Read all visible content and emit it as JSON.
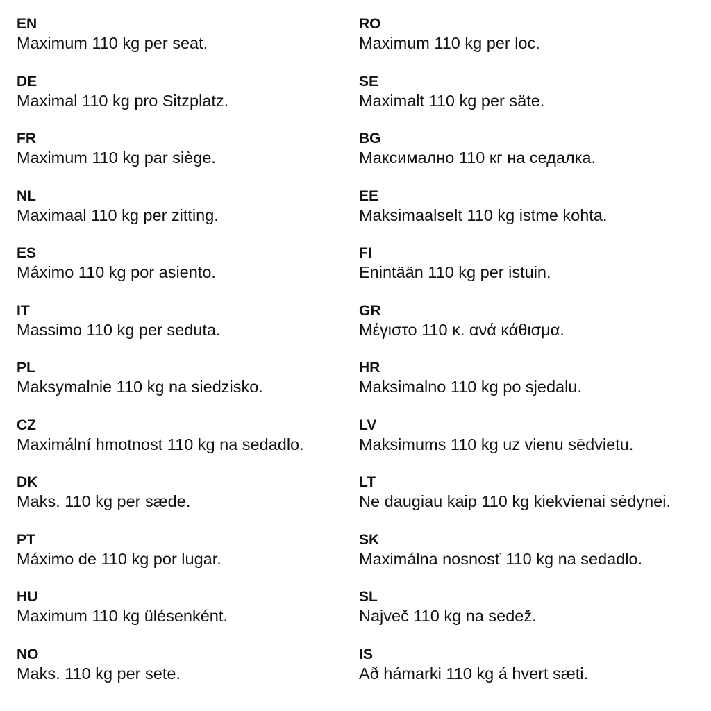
{
  "left": [
    {
      "code": "EN",
      "text": "Maximum 110 kg per seat."
    },
    {
      "code": "DE",
      "text": "Maximal 110 kg pro Sitzplatz."
    },
    {
      "code": "FR",
      "text": "Maximum 110 kg par siège."
    },
    {
      "code": "NL",
      "text": "Maximaal 110 kg per zitting."
    },
    {
      "code": "ES",
      "text": "Máximo 110 kg por asiento."
    },
    {
      "code": "IT",
      "text": "Massimo 110 kg per seduta."
    },
    {
      "code": "PL",
      "text": "Maksymalnie 110 kg na siedzisko."
    },
    {
      "code": "CZ",
      "text": "Maximální hmotnost 110 kg na sedadlo."
    },
    {
      "code": "DK",
      "text": "Maks. 110 kg per sæde."
    },
    {
      "code": "PT",
      "text": "Máximo de 110 kg por lugar."
    },
    {
      "code": "HU",
      "text": "Maximum 110 kg ülésenként."
    },
    {
      "code": "NO",
      "text": "Maks. 110 kg per sete."
    }
  ],
  "right": [
    {
      "code": "RO",
      "text": "Maximum 110 kg per loc."
    },
    {
      "code": "SE",
      "text": "Maximalt 110 kg per säte."
    },
    {
      "code": "BG",
      "text": "Максимално 110 кг на седалка."
    },
    {
      "code": "EE",
      "text": "Maksimaalselt 110 kg istme kohta."
    },
    {
      "code": "FI",
      "text": "Enintään 110 kg per istuin."
    },
    {
      "code": "GR",
      "text": "Μέγιστο 110 κ. ανά κάθισμα."
    },
    {
      "code": "HR",
      "text": "Maksimalno 110 kg po sjedalu."
    },
    {
      "code": "LV",
      "text": "Maksimums 110 kg uz vienu sēdvietu."
    },
    {
      "code": "LT",
      "text": "Ne daugiau kaip 110 kg kiekvienai sėdynei."
    },
    {
      "code": "SK",
      "text": "Maximálna nosnosť 110 kg na sedadlo."
    },
    {
      "code": "SL",
      "text": "Največ 110 kg na sedež."
    },
    {
      "code": "IS",
      "text": "Að hámarki 110 kg á hvert sæti."
    }
  ]
}
